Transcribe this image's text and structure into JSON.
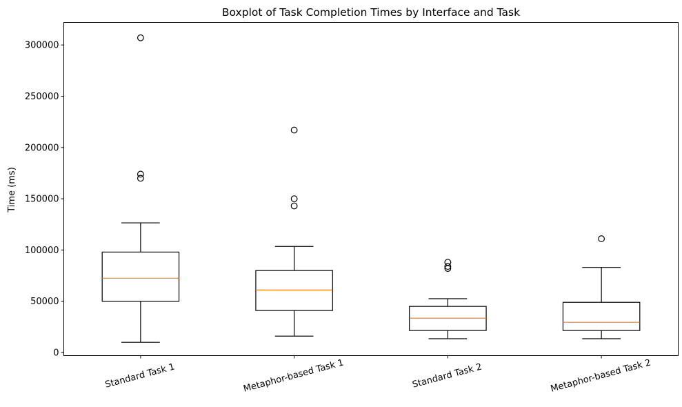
{
  "chart_data": {
    "type": "boxplot",
    "title": "Boxplot of Task Completion Times by Interface and Task",
    "xlabel": "",
    "ylabel": "Time (ms)",
    "ylim": [
      -3000,
      322000
    ],
    "yticks": [
      0,
      50000,
      100000,
      150000,
      200000,
      250000,
      300000
    ],
    "categories": [
      "Standard Task 1",
      "Metaphor-based Task 1",
      "Standard Task 2",
      "Metaphor-based Task 2"
    ],
    "grid": false,
    "boxes": [
      {
        "label": "Standard Task 1",
        "whisker_low": 10000,
        "q1": 50000,
        "median": 72500,
        "q3": 98000,
        "whisker_high": 126500,
        "outliers": [
          170000,
          174000,
          307000
        ]
      },
      {
        "label": "Metaphor-based Task 1",
        "whisker_low": 16000,
        "q1": 41000,
        "median": 61000,
        "q3": 80000,
        "whisker_high": 103500,
        "outliers": [
          143000,
          150000,
          217000
        ]
      },
      {
        "label": "Standard Task 2",
        "whisker_low": 13500,
        "q1": 21500,
        "median": 33500,
        "q3": 45000,
        "whisker_high": 52500,
        "outliers": [
          82000,
          84000,
          88000
        ]
      },
      {
        "label": "Metaphor-based Task 2",
        "whisker_low": 13500,
        "q1": 21500,
        "median": 29500,
        "q3": 49000,
        "whisker_high": 83000,
        "outliers": [
          111000
        ]
      }
    ],
    "colors": {
      "box": "#000000",
      "median": "#ff7f0e",
      "outlier": "#000000",
      "axes": "#000000"
    }
  }
}
